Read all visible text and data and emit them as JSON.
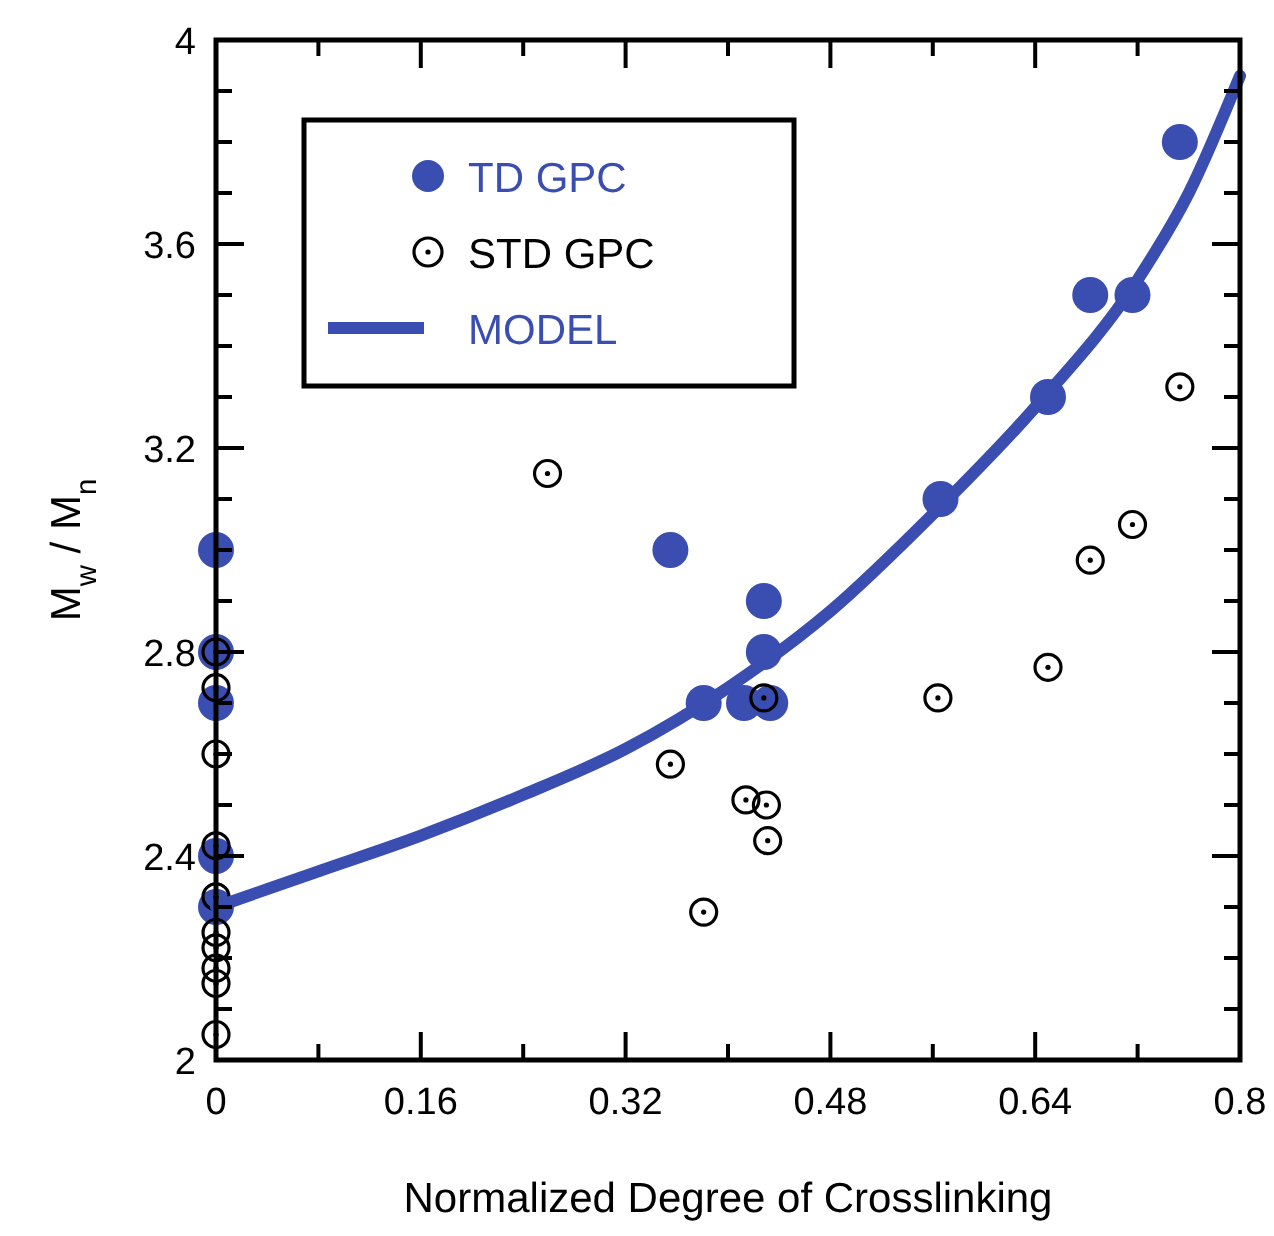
{
  "chart_data": {
    "type": "scatter",
    "xlabel": "Normalized Degree of Crosslinking",
    "ylabel": "M$_{w}$ / M$_{n}$",
    "xlim": [
      0,
      0.8
    ],
    "ylim": [
      2,
      4
    ],
    "xticks": [
      0,
      {
        "value": 0.08,
        "label": null
      },
      0.16,
      {
        "value": 0.24,
        "label": null
      },
      0.32,
      {
        "value": 0.4,
        "label": null
      },
      0.48,
      {
        "value": 0.56,
        "label": null
      },
      0.64,
      {
        "value": 0.72,
        "label": null
      },
      0.8
    ],
    "yticks": [
      2,
      {
        "value": 2.1,
        "label": null
      },
      {
        "value": 2.2,
        "label": null
      },
      {
        "value": 2.3,
        "label": null
      },
      2.4,
      {
        "value": 2.5,
        "label": null
      },
      {
        "value": 2.6,
        "label": null
      },
      {
        "value": 2.7,
        "label": null
      },
      2.8,
      {
        "value": 2.9,
        "label": null
      },
      {
        "value": 3.0,
        "label": null
      },
      {
        "value": 3.1,
        "label": null
      },
      3.2,
      {
        "value": 3.3,
        "label": null
      },
      {
        "value": 3.4,
        "label": null
      },
      {
        "value": 3.5,
        "label": null
      },
      3.6,
      {
        "value": 3.7,
        "label": null
      },
      {
        "value": 3.8,
        "label": null
      },
      {
        "value": 3.9,
        "label": null
      },
      4
    ],
    "grid": false,
    "legend": "top left",
    "marker": "circle",
    "series": [
      {
        "name": "TD GPC",
        "color": "#3a4db0",
        "x": [
          0,
          0,
          0,
          0,
          0,
          0.355,
          0.381,
          0.4125,
          0.433,
          0.428,
          0.428,
          0.566,
          0.65,
          0.683,
          0.716,
          0.753
        ],
        "values": [
          3.0,
          2.8,
          2.7,
          2.4,
          2.3,
          3.0,
          2.7,
          2.7,
          2.7,
          2.9,
          2.8,
          3.1,
          3.3,
          3.5,
          3.5,
          3.8
        ]
      },
      {
        "name": "STD GPC",
        "color": "#000000",
        "x": [
          0,
          0,
          0,
          0,
          0,
          0,
          0,
          0,
          0,
          0,
          0.259,
          0.355,
          0.381,
          0.414,
          0.428,
          0.43,
          0.431,
          0.564,
          0.65,
          0.683,
          0.716,
          0.753
        ],
        "values": [
          2.8,
          2.73,
          2.6,
          2.42,
          2.32,
          2.25,
          2.22,
          2.18,
          2.15,
          2.05,
          3.15,
          2.58,
          2.29,
          2.51,
          2.71,
          2.5,
          2.43,
          2.71,
          2.77,
          2.98,
          3.05,
          3.32
        ]
      },
      {
        "name": "MODEL",
        "type": "line",
        "marker": "none",
        "color": "#3a4db0",
        "line_style": "solid",
        "x": [
          0,
          0.08,
          0.16,
          0.24,
          0.32,
          0.4,
          0.48,
          0.56,
          0.64,
          0.72,
          0.76,
          0.8
        ],
        "values": [
          2.3,
          2.37,
          2.44,
          2.52,
          2.61,
          2.73,
          2.88,
          3.07,
          3.28,
          3.53,
          3.7,
          3.93
        ]
      }
    ]
  }
}
